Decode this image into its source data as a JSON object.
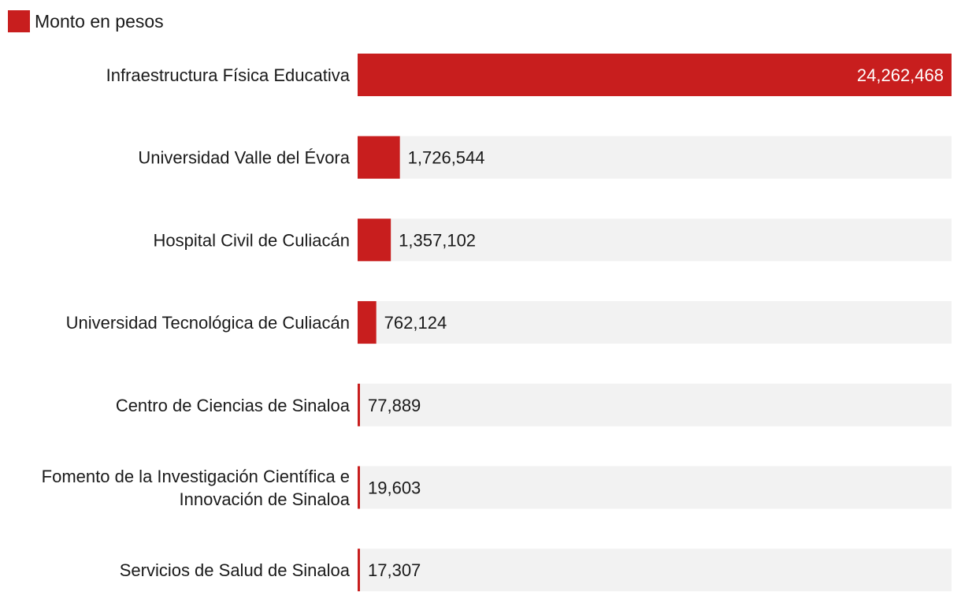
{
  "colors": {
    "bar": "#c81e1e",
    "track": "#f2f2f2",
    "text": "#1a1a1a",
    "label_inside": "#ffffff"
  },
  "legend": {
    "label": "Monto en pesos"
  },
  "chart_data": {
    "type": "bar",
    "orientation": "horizontal",
    "categories": [
      "Infraestructura Física Educativa",
      "Universidad Valle del Évora",
      "Hospital Civil de Culiacán",
      "Universidad Tecnológica de Culiacán",
      "Centro de Ciencias de Sinaloa",
      "Fomento de la Investigación Científica e Innovación de Sinaloa",
      "Servicios de Salud de Sinaloa"
    ],
    "category_lines": [
      [
        "Infraestructura Física Educativa"
      ],
      [
        "Universidad Valle del Évora"
      ],
      [
        "Hospital Civil de Culiacán"
      ],
      [
        "Universidad Tecnológica de Culiacán"
      ],
      [
        "Centro de Ciencias de Sinaloa"
      ],
      [
        "Fomento de la Investigación Científica e",
        "Innovación de Sinaloa"
      ],
      [
        "Servicios de Salud de Sinaloa"
      ]
    ],
    "series": [
      {
        "name": "Monto en pesos",
        "values": [
          24262468,
          1726544,
          1357102,
          762124,
          77889,
          19603,
          17307
        ]
      }
    ],
    "value_labels": [
      "24,262,468",
      "1,726,544",
      "1,357,102",
      "762,124",
      "77,889",
      "19,603",
      "17,307"
    ],
    "xlim": [
      0,
      24262468
    ],
    "legend_position": "top-left",
    "grid": false
  }
}
